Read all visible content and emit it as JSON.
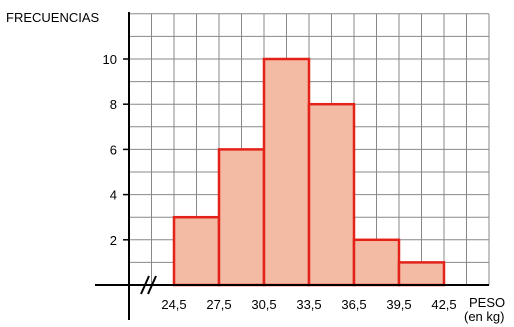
{
  "chart_data": {
    "type": "bar",
    "ylabel": "FRECUENCIAS",
    "xlabel": "PESO",
    "xlabel_unit": "(en kg)",
    "x_edges": [
      "24,5",
      "27,5",
      "30,5",
      "33,5",
      "36,5",
      "39,5",
      "42,5"
    ],
    "x_edge_values": [
      24.5,
      27.5,
      30.5,
      33.5,
      36.5,
      39.5,
      42.5
    ],
    "bins": [
      {
        "from": 24.5,
        "to": 27.5,
        "value": 3
      },
      {
        "from": 27.5,
        "to": 30.5,
        "value": 6
      },
      {
        "from": 30.5,
        "to": 33.5,
        "value": 10
      },
      {
        "from": 33.5,
        "to": 36.5,
        "value": 8
      },
      {
        "from": 36.5,
        "to": 39.5,
        "value": 2
      },
      {
        "from": 39.5,
        "to": 42.5,
        "value": 1
      }
    ],
    "yticks": [
      "2",
      "4",
      "6",
      "8",
      "10"
    ],
    "ytick_values": [
      2,
      4,
      6,
      8,
      10
    ],
    "ylim": [
      0,
      12
    ],
    "grid": true,
    "axis_break": true,
    "colors": {
      "bar_fill": "#f4bba4",
      "bar_stroke": "#e32219",
      "grid": "#888888",
      "axis": "#000000"
    }
  }
}
